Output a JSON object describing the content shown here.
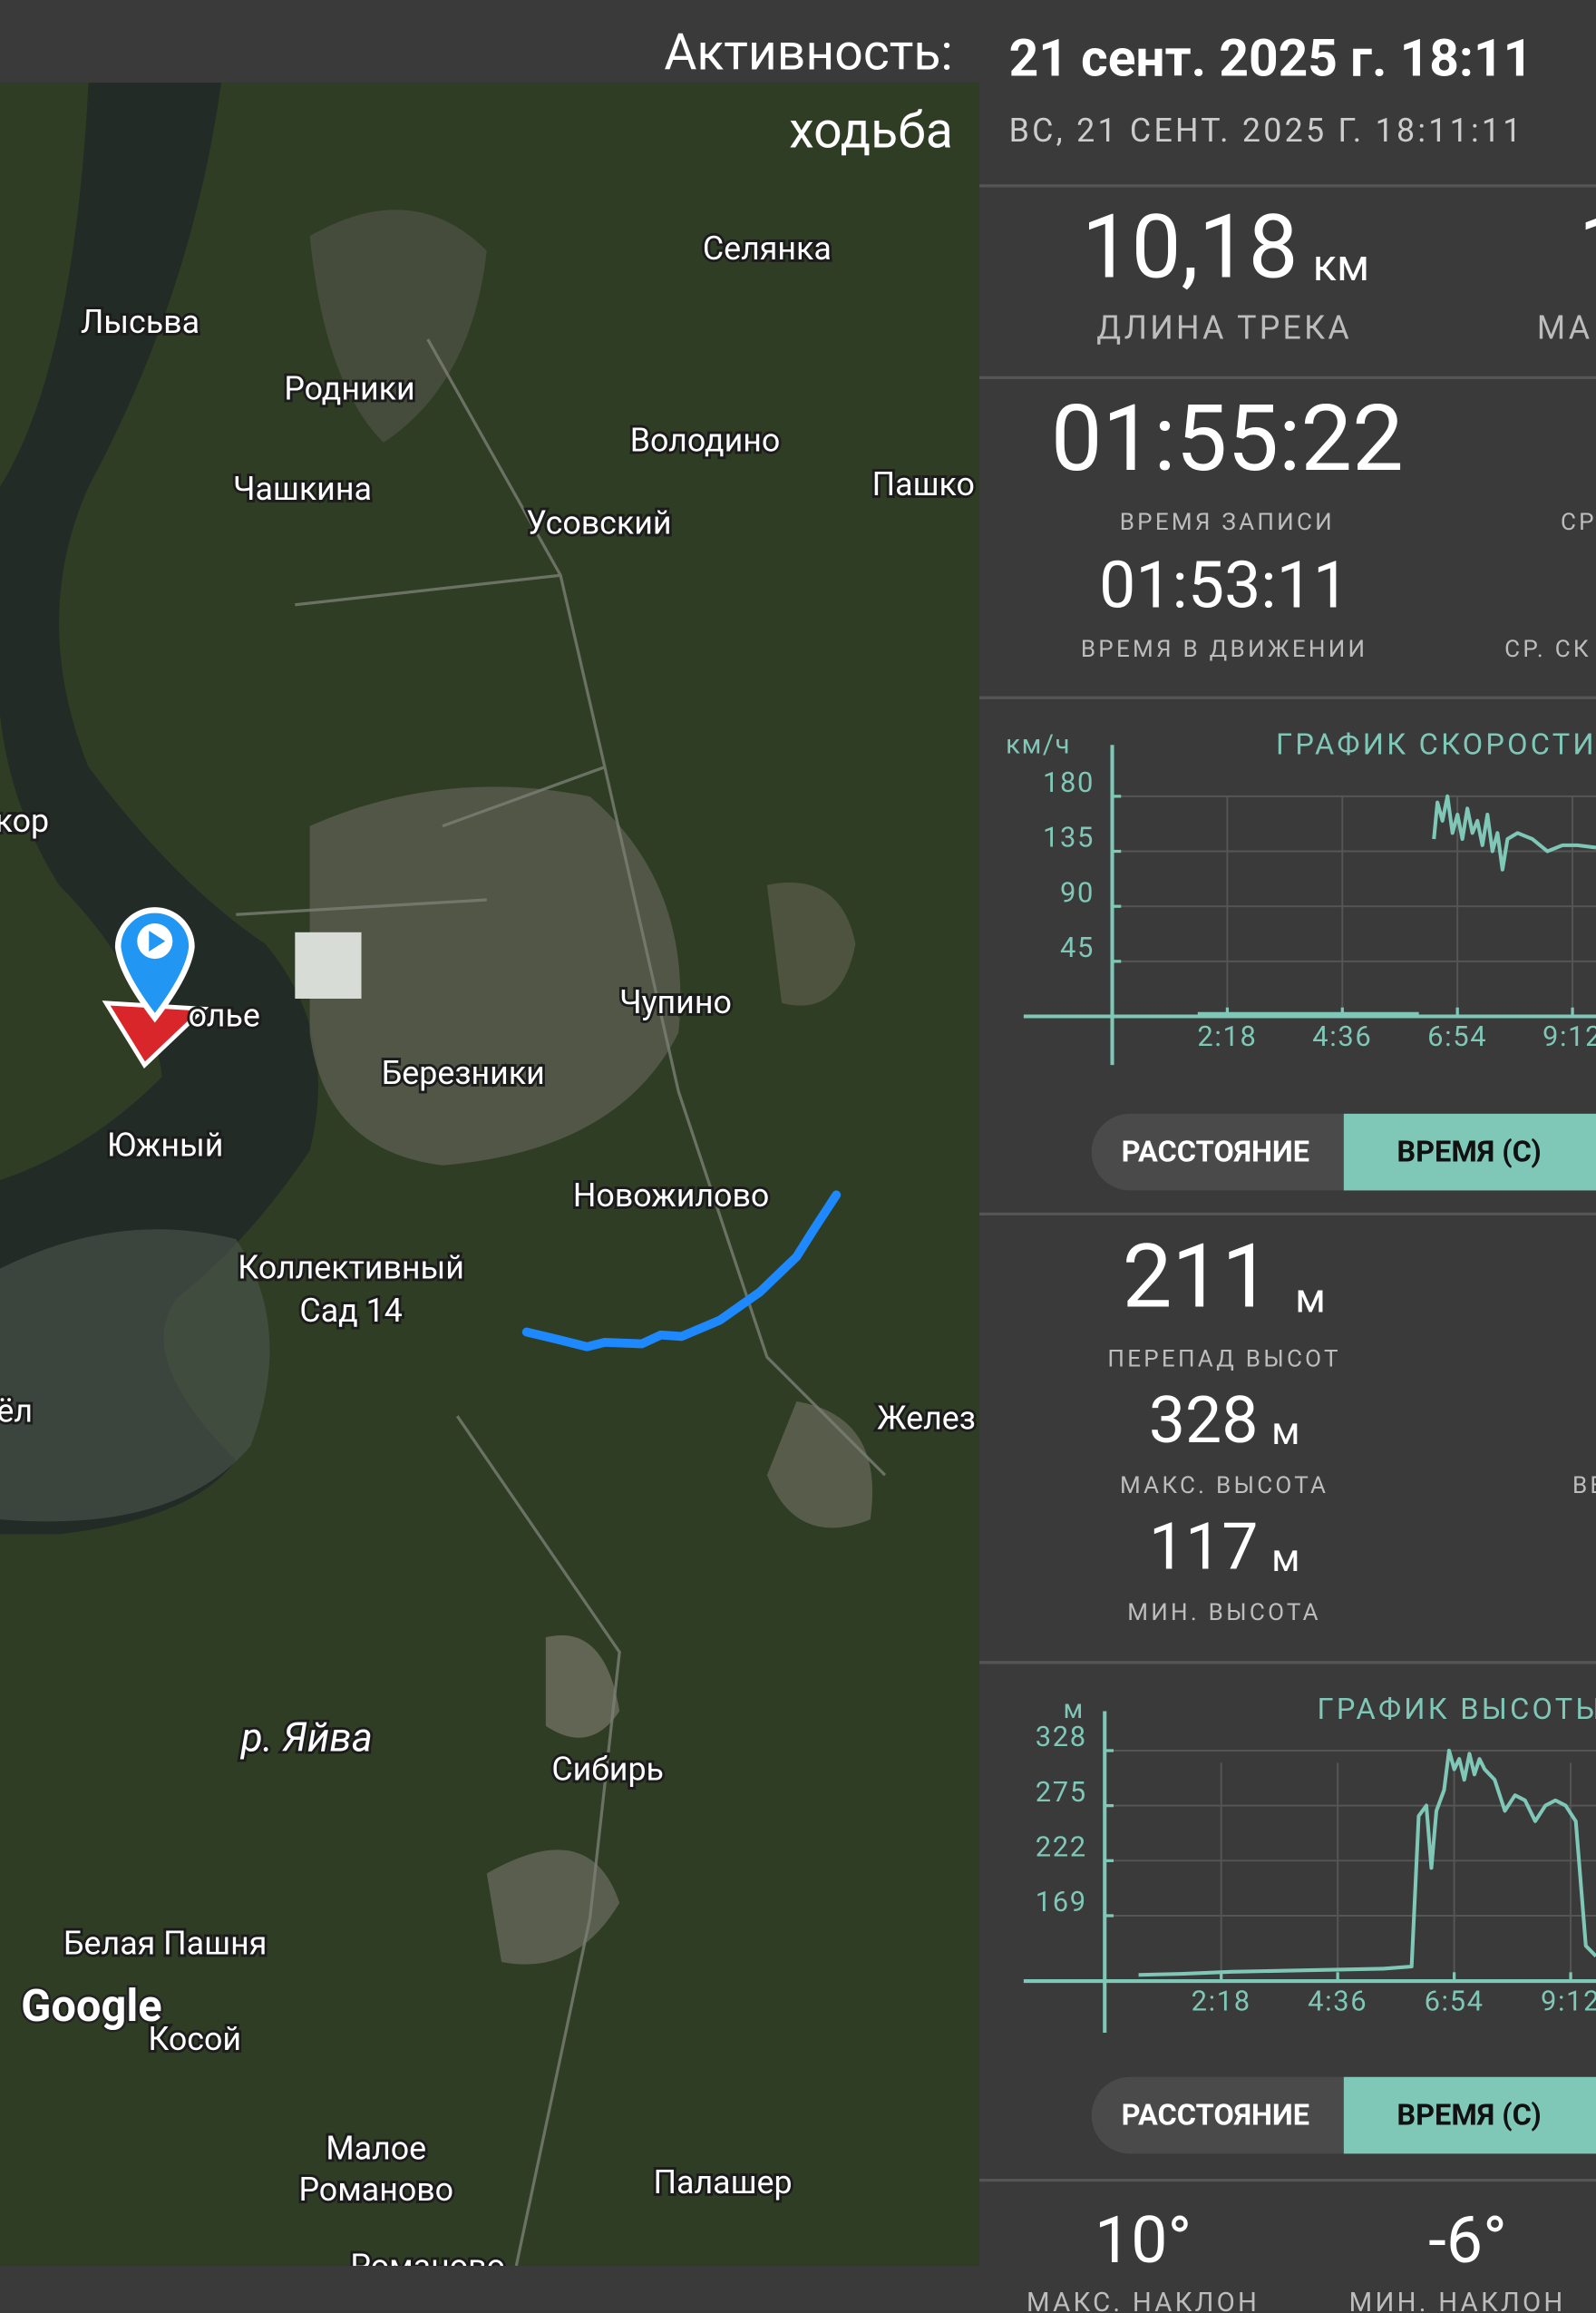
{
  "header": {
    "activity_label": "Активность:",
    "activity": "ходьба",
    "date": "21 сент. 2025 г. 18:11",
    "date_full": "ВС, 21 СЕНТ. 2025 Г. 18:11:11"
  },
  "map": {
    "labels": [
      "Селянка",
      "Лысьва",
      "Родники",
      "Володино",
      "Пашко",
      "Чашкина",
      "Усовский",
      "кор",
      "олье",
      "Чупино",
      "Березники",
      "Южный",
      "Новожилово",
      "Коллективный",
      "Сад 14",
      "ёл",
      "Желез",
      "р. Яйва",
      "Сибирь",
      "Белая Пашня",
      "Косой",
      "Малое",
      "Романово",
      "Палашер",
      "Романово"
    ],
    "logo": "Google"
  },
  "stats": {
    "track_length": {
      "value": "10,18",
      "unit": "км",
      "label": "ДЛИНА ТРЕКА"
    },
    "max_speed_partial": {
      "value": "1",
      "label": "МА"
    },
    "record_time": {
      "value": "01:55:22",
      "label": "ВРЕМЯ ЗАПИСИ"
    },
    "avg_partial": "СР",
    "moving_time": {
      "value": "01:53:11",
      "label": "ВРЕМЯ В ДВИЖЕНИИ"
    },
    "avg_speed_partial": "СР. СК",
    "elevation_gain": {
      "value": "211",
      "unit": "м",
      "label": "ПЕРЕПАД ВЫСОТ"
    },
    "max_elevation": {
      "value": "328",
      "unit": "м",
      "label": "МАКС. ВЫСОТА"
    },
    "min_elevation": {
      "value": "117",
      "unit": "м",
      "label": "МИН. ВЫСОТА"
    },
    "right_partial": "ВЕ",
    "max_slope": {
      "value": "10°",
      "label": "МАКС. НАКЛОН"
    },
    "min_slope": {
      "value": "-6°",
      "label": "МИН. НАКЛОН"
    }
  },
  "toggles": [
    {
      "distance": "РАССТОЯНИЕ",
      "time": "ВРЕМЯ (С)"
    },
    {
      "distance": "РАССТОЯНИЕ",
      "time": "ВРЕМЯ (С)"
    }
  ],
  "chart_data": [
    {
      "type": "line",
      "title": "ГРАФИК СКОРОСТИ",
      "y_label": "км/ч",
      "color": "#7fc8b8",
      "grid": true,
      "xlim": [
        -1.77,
        9.67
      ],
      "ylim": [
        0,
        222
      ],
      "xticks": [
        {
          "value": 2.3,
          "label": "2:18"
        },
        {
          "value": 4.6,
          "label": "4:36"
        },
        {
          "value": 6.9,
          "label": "6:54"
        },
        {
          "value": 9.2,
          "label": "9:12"
        }
      ],
      "yticks": [
        45,
        90,
        135,
        180
      ],
      "x": [
        1.71,
        3,
        4.5,
        6.13,
        6.3,
        6.43,
        6.5,
        6.6,
        6.7,
        6.8,
        6.9,
        7.0,
        7.1,
        7.2,
        7.3,
        7.4,
        7.5,
        7.6,
        7.7,
        7.8,
        7.9,
        8.1,
        8.4,
        8.7,
        9.0,
        9.3,
        9.67
      ],
      "values": [
        2,
        2,
        2,
        2,
        null,
        145,
        175,
        160,
        180,
        150,
        165,
        145,
        170,
        150,
        160,
        140,
        165,
        135,
        150,
        120,
        145,
        150,
        145,
        135,
        140,
        140,
        138
      ]
    },
    {
      "type": "line",
      "title": "ГРАФИК ВЫСОТЫ",
      "y_label": "м",
      "color": "#7fc8b8",
      "grid": true,
      "xlim": [
        -1.6,
        9.7
      ],
      "ylim": [
        106,
        366
      ],
      "xticks": [
        {
          "value": 2.3,
          "label": "2:18"
        },
        {
          "value": 4.6,
          "label": "4:36"
        },
        {
          "value": 6.9,
          "label": "6:54"
        },
        {
          "value": 9.2,
          "label": "9:12"
        }
      ],
      "yticks": [
        169,
        222,
        275,
        328
      ],
      "x": [
        0.67,
        1.5,
        2.5,
        3.5,
        4.5,
        5.5,
        6.06,
        6.2,
        6.35,
        6.45,
        6.55,
        6.7,
        6.8,
        6.9,
        7.0,
        7.1,
        7.2,
        7.3,
        7.4,
        7.5,
        7.7,
        7.9,
        8.1,
        8.3,
        8.5,
        8.7,
        8.9,
        9.1,
        9.3,
        9.5,
        9.7
      ],
      "values": [
        112,
        113,
        115,
        116,
        117,
        118,
        120,
        265,
        275,
        215,
        270,
        290,
        328,
        310,
        320,
        300,
        325,
        305,
        320,
        310,
        300,
        270,
        285,
        280,
        260,
        275,
        280,
        275,
        260,
        140,
        130
      ]
    }
  ]
}
